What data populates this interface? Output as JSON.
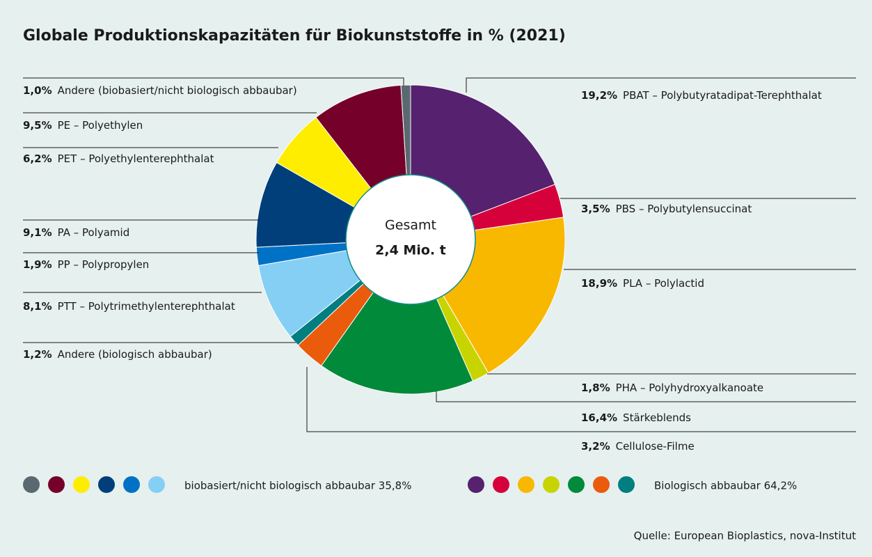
{
  "chart_data": {
    "type": "donut",
    "title": "Globale Produktionskapazitäten für Biokunststoffe in % (2021)",
    "center_label": "Gesamt",
    "center_value": "2,4 Mio. t",
    "source": "Quelle: European Bioplastics, nova-Institut",
    "categories": [
      "PBAT – Polybutyratadipat-Terephthalat",
      "PBS – Polybutylensuccinat",
      "PLA – Polylactid",
      "PHA – Polyhydroxyalkanoate",
      "Stärkeblends",
      "Cellulose-Filme",
      "Andere (biologisch abbaubar)",
      "PTT – Polytrimethylenterephthalat",
      "PP – Polypropylen",
      "PA – Polyamid",
      "PET – Polyethylenterephthalat",
      "PE – Polyethylen",
      "Andere (biobasiert/nicht biologisch abbaubar)"
    ],
    "values": [
      19.2,
      3.5,
      18.9,
      1.8,
      16.4,
      3.2,
      1.2,
      8.1,
      1.9,
      9.1,
      6.2,
      9.5,
      1.0
    ],
    "value_labels": [
      "19,2%",
      "3,5%",
      "18,9%",
      "1,8%",
      "16,4%",
      "3,2%",
      "1,2%",
      "8,1%",
      "1,9%",
      "9,1%",
      "6,2%",
      "9,5%",
      "1,0%"
    ],
    "colors": [
      "#56216e",
      "#d6003b",
      "#f9b800",
      "#c8d400",
      "#008a3a",
      "#ea5b0c",
      "#007e80",
      "#85cff5",
      "#0072c6",
      "#003f7a",
      "#ffed00",
      "#75002a",
      "#5a6870"
    ],
    "groups": [
      {
        "label": "biobasiert/nicht biologisch abbaubar 35,8%",
        "colors": [
          "#5a6870",
          "#75002a",
          "#ffed00",
          "#003f7a",
          "#0072c6",
          "#85cff5"
        ]
      },
      {
        "label": "Biologisch abbaubar 64,2%",
        "colors": [
          "#56216e",
          "#d6003b",
          "#f9b800",
          "#c8d400",
          "#008a3a",
          "#ea5b0c",
          "#007e80"
        ]
      }
    ]
  }
}
